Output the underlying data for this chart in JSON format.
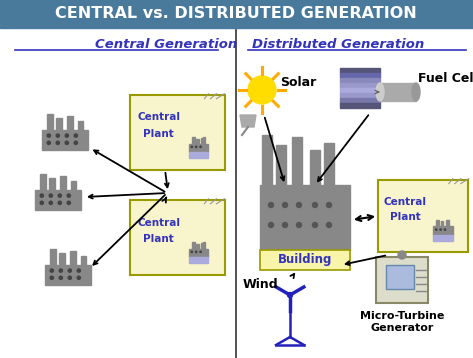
{
  "title": "CENTRAL vs. DISTRIBUTED GENERATION",
  "title_bg": "#4a7a9b",
  "title_color": "white",
  "left_heading": "Central Generation",
  "right_heading": "Distributed Generation",
  "heading_color": "#3333bb",
  "bg_color": "white",
  "box_bg": "#f8f4cc",
  "box_border": "#999900",
  "factory_color": "#888888",
  "factory_dark": "#444444",
  "plant_blue": "#aaaadd",
  "building_label_bg": "#f8f4aa",
  "building_label_color": "#3333bb",
  "wind_color": "#2222bb",
  "sun_color": "#ffdd00",
  "sun_ray_color": "#ffaa00",
  "arrow_color": "black",
  "divider_color": "#333333",
  "label_color": "black",
  "fuel_cell_colors": [
    "#4a4a6a",
    "#6a6a9a",
    "#8a8aaa",
    "#9a9aba",
    "#aaaacc",
    "#8a8aaa",
    "#6a6a9a"
  ],
  "satellite_color": "#888888"
}
